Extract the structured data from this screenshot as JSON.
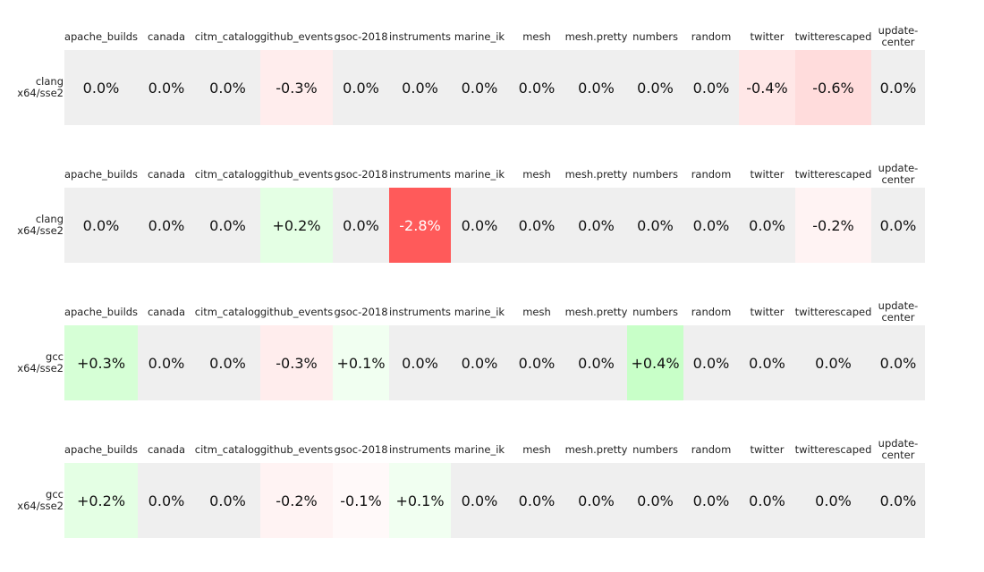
{
  "chart_data": {
    "type": "heatmap",
    "color_scale": {
      "neutral": "#efefef",
      "positive": "#c8ffc8",
      "negative": "#ff5a5a"
    },
    "columns": [
      "apache_builds",
      "canada",
      "citm_catalog",
      "github_events",
      "gsoc-2018",
      "instruments",
      "marine_ik",
      "mesh",
      "mesh.pretty",
      "numbers",
      "random",
      "twitter",
      "twitterescaped",
      "update-center"
    ],
    "panels": [
      {
        "row_label": "clang\nx64/sse2",
        "values": [
          0.0,
          0.0,
          0.0,
          -0.3,
          0.0,
          0.0,
          0.0,
          0.0,
          0.0,
          0.0,
          0.0,
          -0.4,
          -0.6,
          0.0
        ],
        "labels": [
          "0.0%",
          "0.0%",
          "0.0%",
          "-0.3%",
          "0.0%",
          "0.0%",
          "0.0%",
          "0.0%",
          "0.0%",
          "0.0%",
          "0.0%",
          "-0.4%",
          "-0.6%",
          "0.0%"
        ]
      },
      {
        "row_label": "clang\nx64/sse2",
        "values": [
          0.0,
          0.0,
          0.0,
          0.2,
          0.0,
          -2.8,
          0.0,
          0.0,
          0.0,
          0.0,
          0.0,
          0.0,
          -0.2,
          0.0
        ],
        "labels": [
          "0.0%",
          "0.0%",
          "0.0%",
          "+0.2%",
          "0.0%",
          "-2.8%",
          "0.0%",
          "0.0%",
          "0.0%",
          "0.0%",
          "0.0%",
          "0.0%",
          "-0.2%",
          "0.0%"
        ]
      },
      {
        "row_label": "gcc\nx64/sse2",
        "values": [
          0.3,
          0.0,
          0.0,
          -0.3,
          0.1,
          0.0,
          0.0,
          0.0,
          0.0,
          0.4,
          0.0,
          0.0,
          0.0,
          0.0
        ],
        "labels": [
          "+0.3%",
          "0.0%",
          "0.0%",
          "-0.3%",
          "+0.1%",
          "0.0%",
          "0.0%",
          "0.0%",
          "0.0%",
          "+0.4%",
          "0.0%",
          "0.0%",
          "0.0%",
          "0.0%"
        ]
      },
      {
        "row_label": "gcc\nx64/sse2",
        "values": [
          0.2,
          0.0,
          0.0,
          -0.2,
          -0.1,
          0.1,
          0.0,
          0.0,
          0.0,
          0.0,
          0.0,
          0.0,
          0.0,
          0.0
        ],
        "labels": [
          "+0.2%",
          "0.0%",
          "0.0%",
          "-0.2%",
          "-0.1%",
          "+0.1%",
          "0.0%",
          "0.0%",
          "0.0%",
          "0.0%",
          "0.0%",
          "0.0%",
          "0.0%",
          "0.0%"
        ]
      }
    ]
  }
}
